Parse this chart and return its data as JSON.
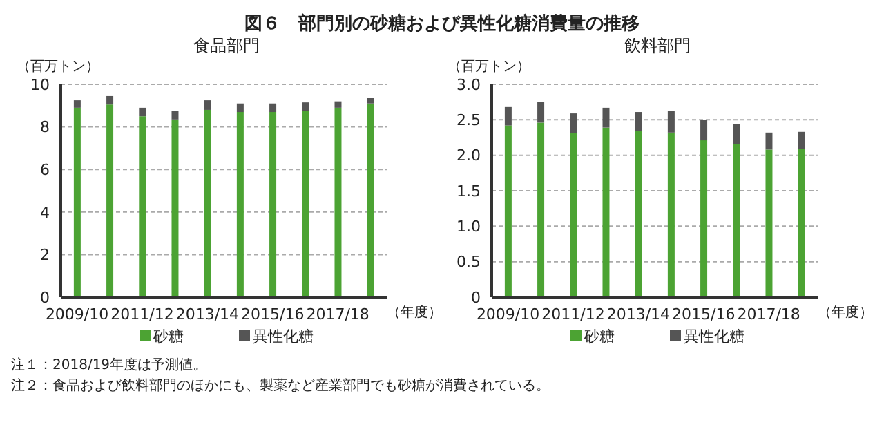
{
  "chart_data": [
    {
      "type": "bar",
      "title": "図６　部門別の砂糖および異性化糖消費量の推移",
      "subtitle": "食品部門",
      "ylabel": "（百万トン）",
      "xlabel": "（年度）",
      "stacked": true,
      "grid": "y",
      "legend": "bottom",
      "categories": [
        "2009/10",
        null,
        "2011/12",
        null,
        "2013/14",
        null,
        "2015/16",
        null,
        "2017/18",
        null
      ],
      "series": [
        {
          "name": "砂糖",
          "color": "#4ca333",
          "values": [
            8.9,
            9.05,
            8.5,
            8.35,
            8.8,
            8.7,
            8.7,
            8.75,
            8.9,
            9.1
          ]
        },
        {
          "name": "異性化糖",
          "color": "#555555",
          "values": [
            0.35,
            0.4,
            0.4,
            0.4,
            0.45,
            0.4,
            0.4,
            0.4,
            0.3,
            0.25
          ]
        }
      ],
      "ylim": [
        0,
        10
      ],
      "yticks": [
        0,
        2,
        4,
        6,
        8,
        10
      ],
      "annotations": [
        "注１：2018/19年度は予測値。",
        "注２：食品および飲料部門のほかにも、製薬など産業部門でも砂糖が消費されている。"
      ]
    },
    {
      "type": "bar",
      "subtitle": "飲料部門",
      "ylabel": "（百万トン）",
      "xlabel": "（年度）",
      "stacked": true,
      "grid": "y",
      "legend": "bottom",
      "categories": [
        "2009/10",
        null,
        "2011/12",
        null,
        "2013/14",
        null,
        "2015/16",
        null,
        "2017/18",
        null
      ],
      "series": [
        {
          "name": "砂糖",
          "color": "#4ca333",
          "values": [
            2.42,
            2.46,
            2.31,
            2.39,
            2.34,
            2.32,
            2.21,
            2.16,
            2.08,
            2.09
          ]
        },
        {
          "name": "異性化糖",
          "color": "#555555",
          "values": [
            0.26,
            0.29,
            0.28,
            0.28,
            0.27,
            0.3,
            0.29,
            0.28,
            0.24,
            0.24
          ]
        }
      ],
      "ylim": [
        0,
        3
      ],
      "yticks": [
        0,
        0.5,
        {
          "value": 1,
          "label": "1.0"
        },
        1.5,
        {
          "value": 2,
          "label": "2.0"
        },
        2.5,
        {
          "value": 3,
          "label": "3.0"
        }
      ]
    }
  ]
}
